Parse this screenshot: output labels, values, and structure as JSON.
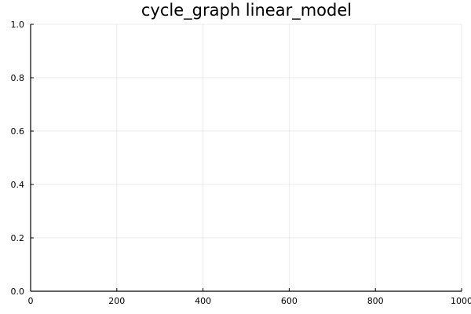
{
  "chart_data": {
    "type": "line",
    "title": "cycle_graph linear_model",
    "xlabel": "",
    "ylabel": "",
    "xlim": [
      0,
      1000
    ],
    "ylim": [
      0,
      1
    ],
    "x_ticks": [
      0,
      200,
      400,
      600,
      800,
      1000
    ],
    "x_tick_labels": [
      "0",
      "200",
      "400",
      "600",
      "800",
      "1000"
    ],
    "y_ticks": [
      0,
      0.2,
      0.4,
      0.6,
      0.8,
      1.0
    ],
    "y_tick_labels": [
      "0.0",
      "0.2",
      "0.4",
      "0.6",
      "0.8",
      "1.0"
    ],
    "series": [],
    "grid": true,
    "legend": "none"
  }
}
